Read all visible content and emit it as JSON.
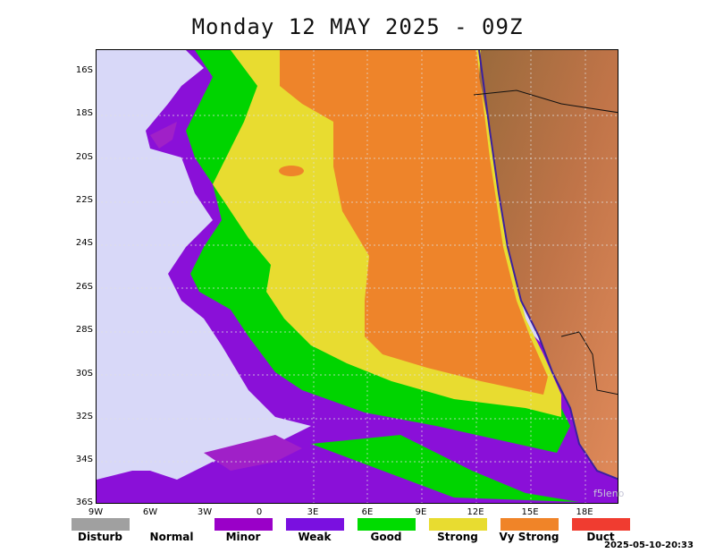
{
  "title": "Monday 12 MAY 2025 - 09Z",
  "watermark": "f5leno",
  "timestamp": "2025-05-10-20:33",
  "y_axis_labels": [
    "16S",
    "18S",
    "20S",
    "22S",
    "24S",
    "26S",
    "28S",
    "30S",
    "32S",
    "34S",
    "36S"
  ],
  "x_axis_labels": [
    "9W",
    "6W",
    "3W",
    "0",
    "3E",
    "6E",
    "9E",
    "12E",
    "15E",
    "18E"
  ],
  "legend": [
    {
      "label": "Disturb",
      "color": "#a0a0a0"
    },
    {
      "label": "Normal",
      "color": "#ffffff"
    },
    {
      "label": "Minor",
      "color": "#9a00c8"
    },
    {
      "label": "Weak",
      "color": "#7a10e0"
    },
    {
      "label": "Good",
      "color": "#00dc00"
    },
    {
      "label": "Strong",
      "color": "#e8dc30"
    },
    {
      "label": "Vy Strong",
      "color": "#f08428"
    },
    {
      "label": "Duct",
      "color": "#f03c30"
    }
  ],
  "colors": {
    "ocean_normal": "#d8d8f8",
    "land": "#b0703a"
  }
}
